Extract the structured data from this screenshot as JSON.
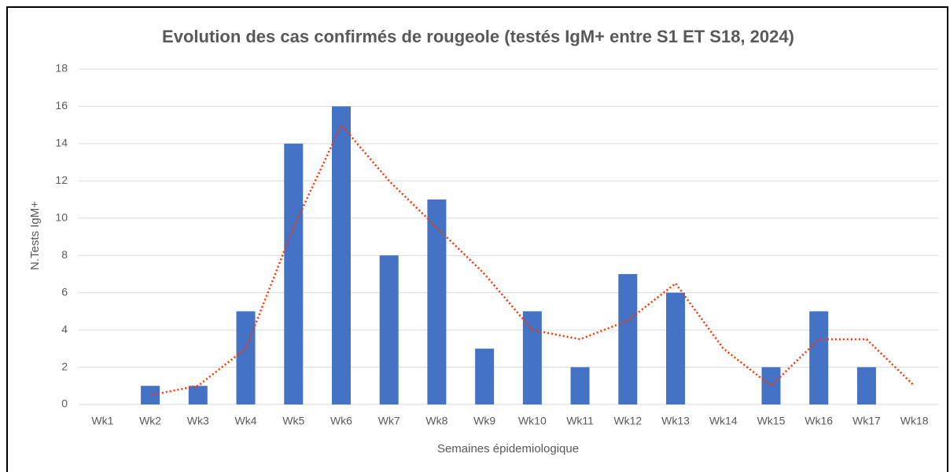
{
  "chart_data": {
    "type": "bar",
    "title": "Evolution des cas confirmés de rougeole (testés IgM+ entre S1 ET S18, 2024)",
    "x_label": "Semaines épidemiologique",
    "y_label": "N.Tests IgM+",
    "categories": [
      "Wk1",
      "Wk2",
      "Wk3",
      "Wk4",
      "Wk5",
      "Wk6",
      "Wk7",
      "Wk8",
      "Wk9",
      "Wk10",
      "Wk11",
      "Wk12",
      "Wk13",
      "Wk14",
      "Wk15",
      "Wk16",
      "Wk17",
      "Wk18"
    ],
    "series": [
      {
        "type": "bar",
        "color": "#4472c4",
        "values": [
          0,
          1,
          1,
          5,
          14,
          16,
          8,
          11,
          3,
          5,
          2,
          7,
          6,
          0,
          2,
          5,
          2,
          0
        ]
      },
      {
        "type": "line",
        "style": "dotted",
        "color": "#ff3300",
        "values": [
          null,
          0.5,
          1,
          3,
          9.5,
          15,
          12,
          9.5,
          7,
          4,
          3.5,
          4.5,
          6.5,
          3,
          1,
          3.5,
          3.5,
          1
        ]
      }
    ],
    "ylim": [
      0,
      18
    ],
    "yticks": [
      0,
      2,
      4,
      6,
      8,
      10,
      12,
      14,
      16,
      18
    ],
    "grid": true
  }
}
